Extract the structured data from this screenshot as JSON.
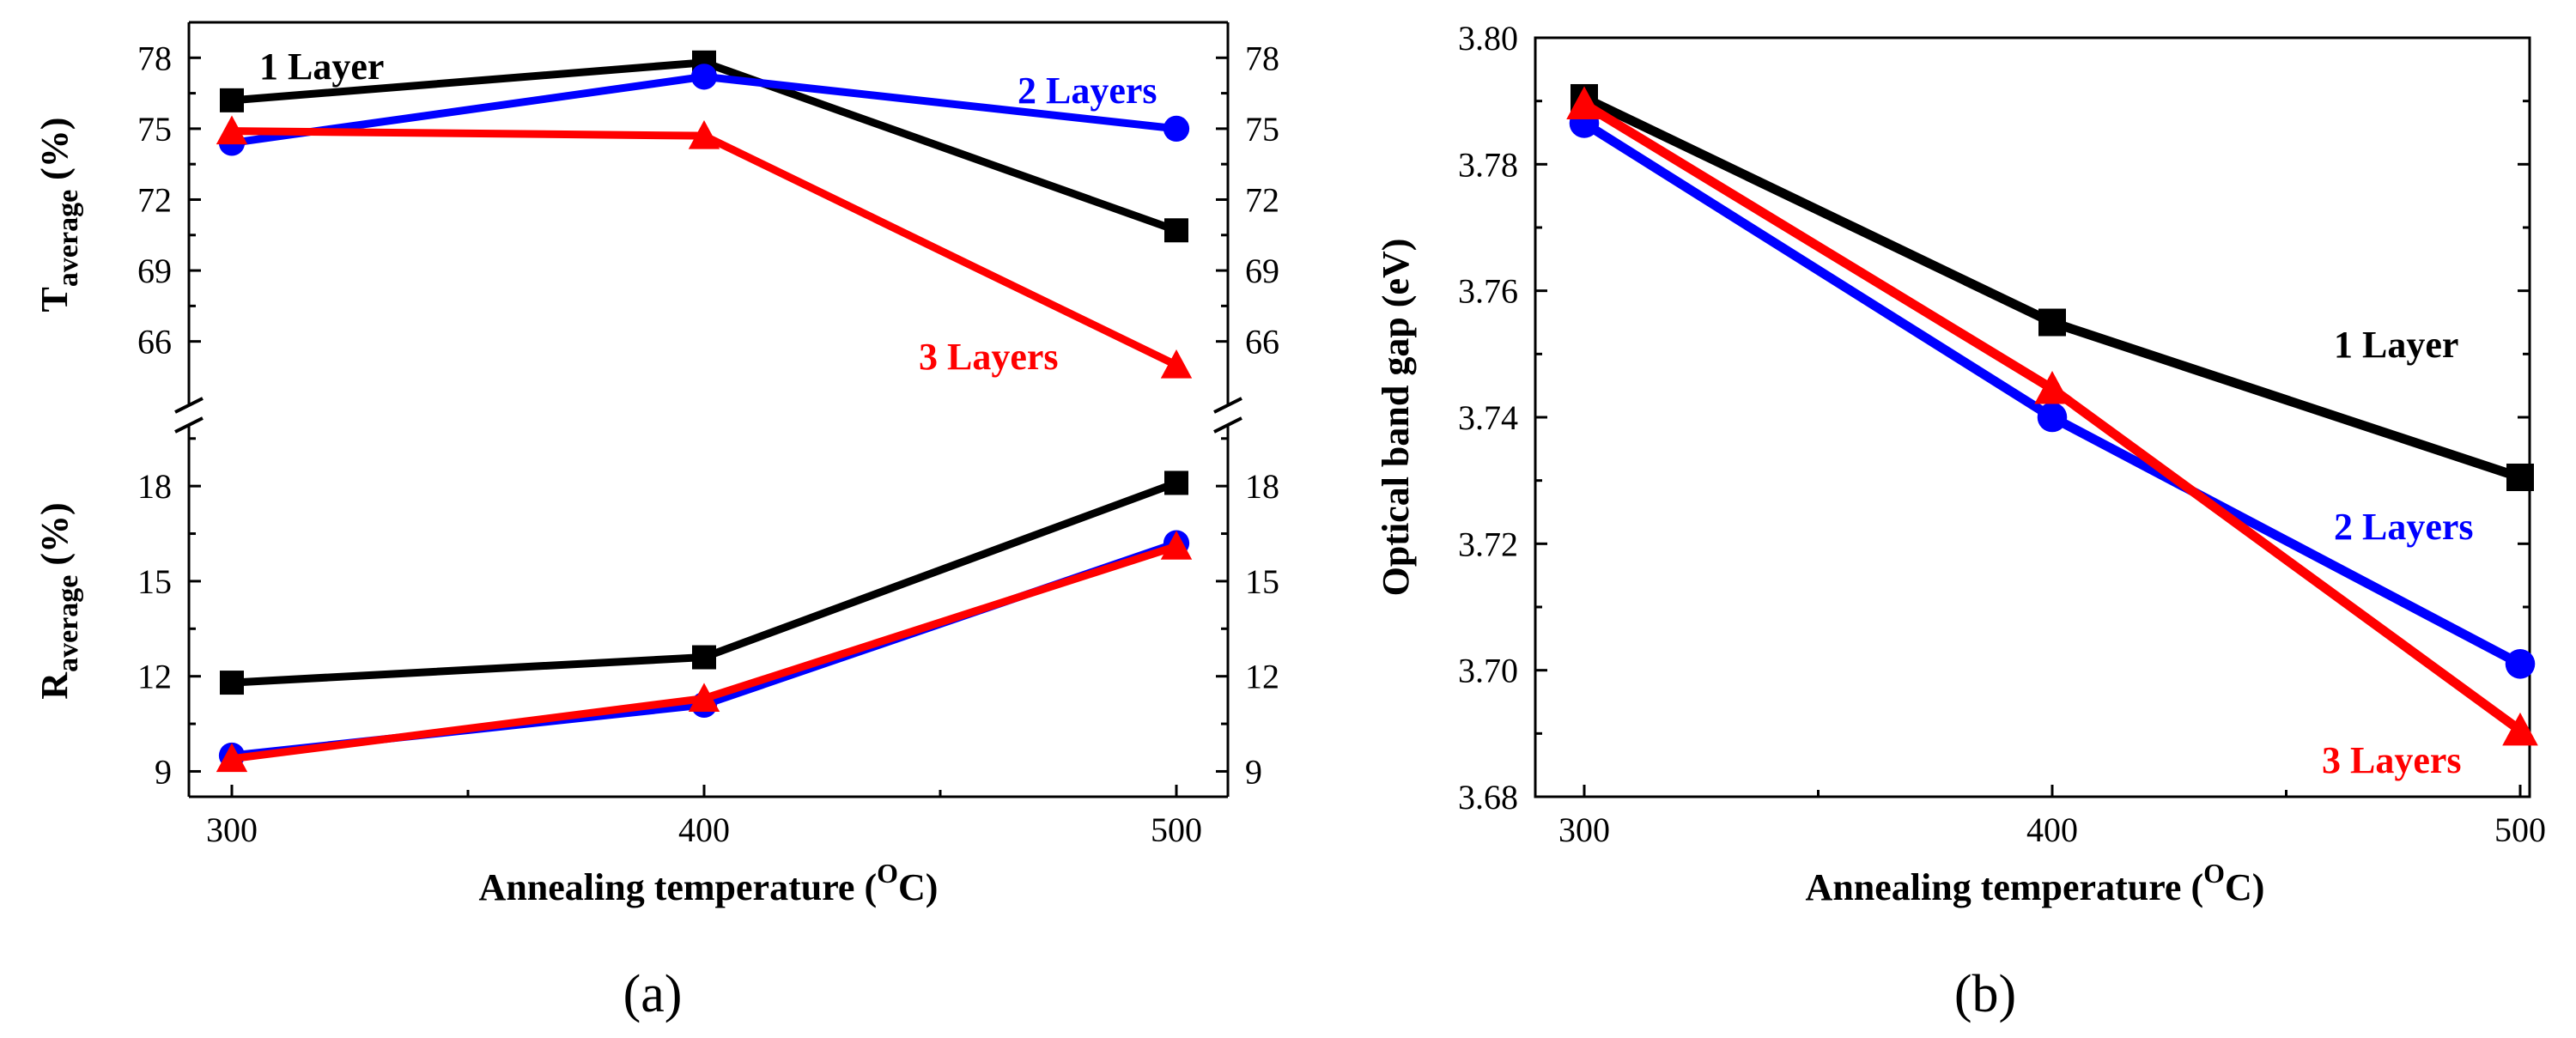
{
  "chart_data": [
    {
      "type": "line",
      "panel_label": "(a)",
      "xlabel": "Annealing temperature (°C)",
      "xlabel_parts": {
        "main": "Annealing temperature (",
        "sup": "O",
        "end": "C)"
      },
      "x": [
        300,
        400,
        500
      ],
      "x_ticks": [
        "300",
        "400",
        "500"
      ],
      "subplots": [
        {
          "name": "transmittance",
          "ylabel": "Taverage (%)",
          "ylabel_parts": {
            "main": "T",
            "sub": "average",
            "end": " (%)"
          },
          "ylim": [
            63.3,
            79.5
          ],
          "y_ticks": [
            "66",
            "69",
            "72",
            "75",
            "78"
          ],
          "y_tick_values": [
            66,
            69,
            72,
            75,
            78
          ],
          "series": [
            {
              "name": "1 Layer",
              "label": "1 Layer",
              "color": "#000000",
              "marker": "square",
              "values": [
                76.2,
                77.8,
                70.7
              ]
            },
            {
              "name": "2 Layers",
              "label": "2 Layers",
              "color": "#0000FF",
              "marker": "circle",
              "values": [
                74.4,
                77.2,
                75.0
              ]
            },
            {
              "name": "3 Layers",
              "label": "3 Layers",
              "color": "#FF0000",
              "marker": "triangle",
              "values": [
                74.9,
                74.7,
                65.0
              ]
            }
          ]
        },
        {
          "name": "reflectance",
          "ylabel": "Raverage (%)",
          "ylabel_parts": {
            "main": "R",
            "sub": "average",
            "end": " (%)"
          },
          "ylim": [
            8.2,
            19.9
          ],
          "y_ticks": [
            "9",
            "12",
            "15",
            "18"
          ],
          "y_tick_values": [
            9,
            12,
            15,
            18
          ],
          "series": [
            {
              "name": "1 Layer",
              "color": "#000000",
              "marker": "square",
              "values": [
                11.8,
                12.6,
                18.1
              ]
            },
            {
              "name": "2 Layers",
              "color": "#0000FF",
              "marker": "circle",
              "values": [
                9.5,
                11.1,
                16.2
              ]
            },
            {
              "name": "3 Layers",
              "color": "#FF0000",
              "marker": "triangle",
              "values": [
                9.4,
                11.3,
                16.1
              ]
            }
          ]
        }
      ]
    },
    {
      "type": "line",
      "panel_label": "(b)",
      "xlabel": "Annealing temperature (°C)",
      "xlabel_parts": {
        "main": "Annealing temperature (",
        "sup": "O",
        "end": "C)"
      },
      "ylabel": "Optical band gap (eV)",
      "x": [
        300,
        400,
        500
      ],
      "x_ticks": [
        "300",
        "400",
        "500"
      ],
      "ylim": [
        3.68,
        3.8
      ],
      "y_ticks": [
        "3.68",
        "3.70",
        "3.72",
        "3.74",
        "3.76",
        "3.78",
        "3.80"
      ],
      "y_tick_values": [
        3.68,
        3.7,
        3.72,
        3.74,
        3.76,
        3.78,
        3.8
      ],
      "series": [
        {
          "name": "1 Layer",
          "label": "1 Layer",
          "color": "#000000",
          "marker": "square",
          "values": [
            3.7905,
            3.755,
            3.7305
          ]
        },
        {
          "name": "2 Layers",
          "label": "2 Layers",
          "color": "#0000FF",
          "marker": "circle",
          "values": [
            3.7865,
            3.74,
            3.701
          ]
        },
        {
          "name": "3 Layers",
          "label": "3 Layers",
          "color": "#FF0000",
          "marker": "triangle",
          "values": [
            3.7895,
            3.7445,
            3.6905
          ]
        }
      ]
    }
  ]
}
